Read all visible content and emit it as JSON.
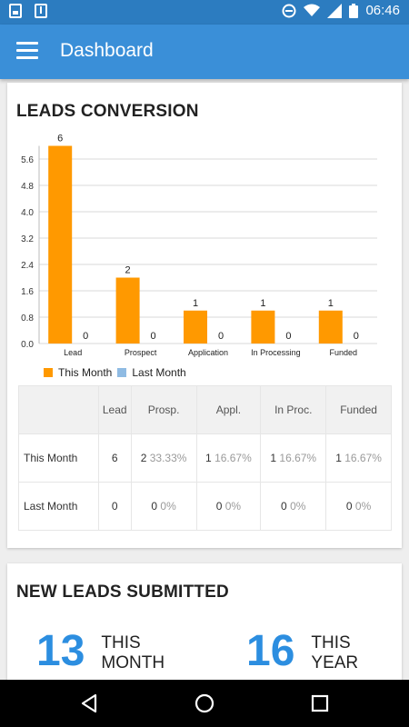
{
  "status_bar": {
    "time": "06:46",
    "icons": [
      "image-icon",
      "download-icon",
      "do-not-disturb-icon",
      "wifi-icon",
      "signal-icon",
      "battery-icon"
    ]
  },
  "app_bar": {
    "title": "Dashboard",
    "menu_icon": "hamburger-icon"
  },
  "leads_conversion": {
    "title": "LEADS CONVERSION",
    "legend": {
      "this_month": "This Month",
      "last_month": "Last Month"
    },
    "table": {
      "headers": [
        "",
        "Lead",
        "Prosp.",
        "Appl.",
        "In Proc.",
        "Funded"
      ],
      "rows": [
        {
          "label": "This Month",
          "cells": [
            {
              "v": "6",
              "p": ""
            },
            {
              "v": "2",
              "p": "33.33%"
            },
            {
              "v": "1",
              "p": "16.67%"
            },
            {
              "v": "1",
              "p": "16.67%"
            },
            {
              "v": "1",
              "p": "16.67%"
            }
          ]
        },
        {
          "label": "Last Month",
          "cells": [
            {
              "v": "0",
              "p": ""
            },
            {
              "v": "0",
              "p": "0%"
            },
            {
              "v": "0",
              "p": "0%"
            },
            {
              "v": "0",
              "p": "0%"
            },
            {
              "v": "0",
              "p": "0%"
            }
          ]
        }
      ]
    }
  },
  "new_leads": {
    "title": "NEW LEADS SUBMITTED",
    "this_month": {
      "value": "13",
      "label_1": "THIS",
      "label_2": "MONTH"
    },
    "this_year": {
      "value": "16",
      "label_1": "THIS",
      "label_2": "YEAR"
    }
  },
  "colors": {
    "accent": "#3a8fd8",
    "this_month": "#ff9900",
    "last_month": "#8fbbe3",
    "stat_number": "#2c8ee0"
  },
  "chart_data": {
    "type": "bar",
    "categories": [
      "Lead",
      "Prospect",
      "Application",
      "In Processing",
      "Funded"
    ],
    "series": [
      {
        "name": "This Month",
        "values": [
          6,
          2,
          1,
          1,
          1
        ]
      },
      {
        "name": "Last Month",
        "values": [
          0,
          0,
          0,
          0,
          0
        ]
      }
    ],
    "yticks": [
      "0.0",
      "0.8",
      "1.6",
      "2.4",
      "3.2",
      "4.0",
      "4.8",
      "5.6"
    ],
    "ylim": [
      0,
      6
    ],
    "grid": true,
    "legend_position": "bottom-left"
  }
}
